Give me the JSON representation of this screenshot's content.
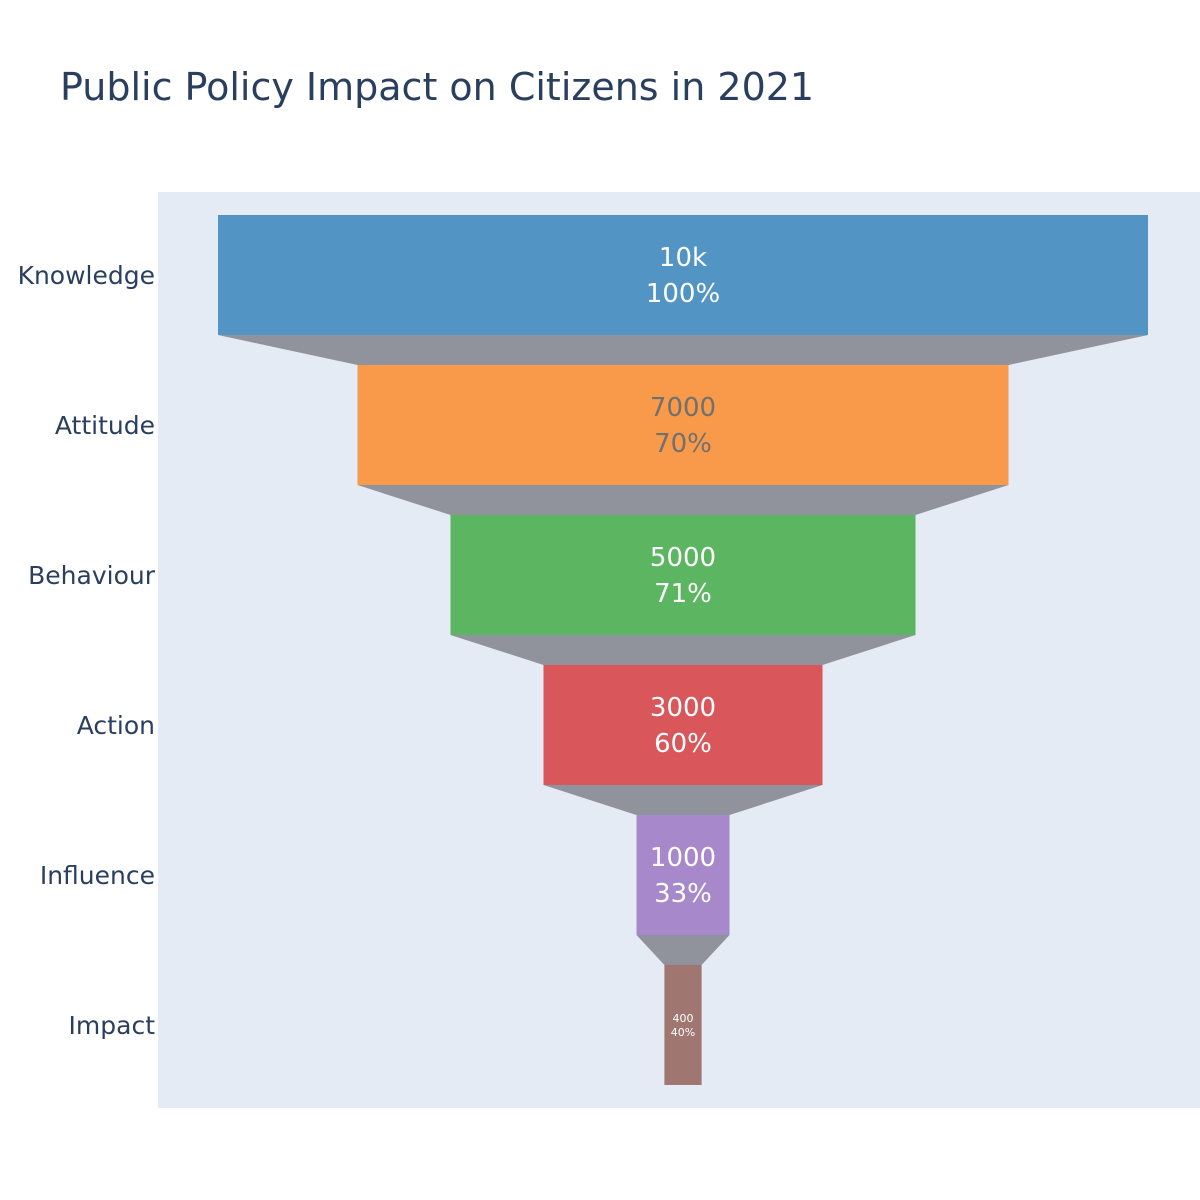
{
  "chart_data": {
    "type": "funnel",
    "title": "Public Policy Impact on Citizens in 2021",
    "categories": [
      "Knowledge",
      "Attitude",
      "Behaviour",
      "Action",
      "Influence",
      "Impact"
    ],
    "values": [
      10000,
      7000,
      5000,
      3000,
      1000,
      400
    ],
    "value_labels": [
      "10k",
      "7000",
      "5000",
      "3000",
      "1000",
      "400"
    ],
    "percent_labels": [
      "100%",
      "70%",
      "71%",
      "60%",
      "33%",
      "40%"
    ],
    "colors": [
      "#5294c4",
      "#f89a4a",
      "#5cb561",
      "#d9575b",
      "#a788ca",
      "#9f7670"
    ],
    "label_colors": [
      "#ffffff",
      "#707070",
      "#ffffff",
      "#ffffff",
      "#ffffff",
      "#ffffff"
    ],
    "connector_color": "#90939c",
    "plot_background": "#e5ebf5",
    "xlabel": "",
    "ylabel": ""
  }
}
